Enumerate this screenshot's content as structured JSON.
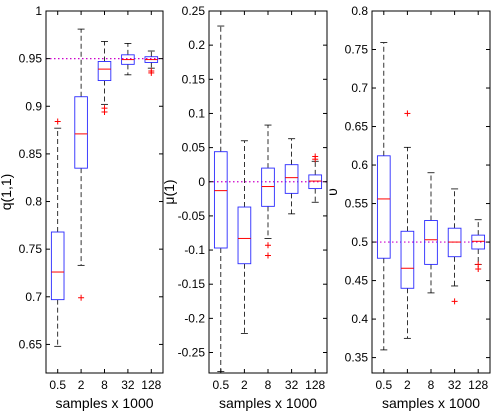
{
  "chart_data": [
    {
      "type": "box",
      "ylabel": "q(1,1)",
      "xlabel": "samples x 1000",
      "categories": [
        "0.5",
        "2",
        "8",
        "32",
        "128"
      ],
      "ylim": [
        0.62,
        1.0
      ],
      "yticks": [
        "0.65",
        "0.7",
        "0.75",
        "0.8",
        "0.85",
        "0.9",
        "0.95",
        "1"
      ],
      "reference_line": 0.95,
      "boxes": [
        {
          "category": "0.5",
          "whisker_low": 0.648,
          "q1": 0.697,
          "median": 0.726,
          "q3": 0.768,
          "whisker_high": 0.877,
          "outliers": [
            0.884
          ]
        },
        {
          "category": "2",
          "whisker_low": 0.733,
          "q1": 0.835,
          "median": 0.871,
          "q3": 0.91,
          "whisker_high": 0.981,
          "outliers": [
            0.699
          ]
        },
        {
          "category": "8",
          "whisker_low": 0.902,
          "q1": 0.927,
          "median": 0.939,
          "q3": 0.947,
          "whisker_high": 0.968,
          "outliers": [
            0.898,
            0.894
          ]
        },
        {
          "category": "32",
          "whisker_low": 0.933,
          "q1": 0.944,
          "median": 0.949,
          "q3": 0.954,
          "whisker_high": 0.966,
          "outliers": []
        },
        {
          "category": "128",
          "whisker_low": 0.94,
          "q1": 0.946,
          "median": 0.949,
          "q3": 0.952,
          "whisker_high": 0.958,
          "outliers": [
            0.937,
            0.935
          ]
        }
      ]
    },
    {
      "type": "box",
      "ylabel": "μ(1)",
      "xlabel": "samples x 1000",
      "categories": [
        "0.5",
        "2",
        "8",
        "32",
        "128"
      ],
      "ylim": [
        -0.28,
        0.25
      ],
      "yticks": [
        "-0.25",
        "-0.2",
        "-0.15",
        "-0.1",
        "-0.05",
        "0",
        "0.05",
        "0.1",
        "0.15",
        "0.2",
        "0.25"
      ],
      "reference_line": 0,
      "boxes": [
        {
          "category": "0.5",
          "whisker_low": -0.278,
          "q1": -0.097,
          "median": -0.013,
          "q3": 0.044,
          "whisker_high": 0.228,
          "outliers": []
        },
        {
          "category": "2",
          "whisker_low": -0.222,
          "q1": -0.12,
          "median": -0.083,
          "q3": -0.037,
          "whisker_high": 0.06,
          "outliers": []
        },
        {
          "category": "8",
          "whisker_low": -0.083,
          "q1": -0.036,
          "median": -0.007,
          "q3": 0.02,
          "whisker_high": 0.083,
          "outliers": [
            -0.093,
            -0.108
          ]
        },
        {
          "category": "32",
          "whisker_low": -0.047,
          "q1": -0.017,
          "median": 0.006,
          "q3": 0.025,
          "whisker_high": 0.063,
          "outliers": []
        },
        {
          "category": "128",
          "whisker_low": -0.03,
          "q1": -0.01,
          "median": 0.001,
          "q3": 0.01,
          "whisker_high": 0.03,
          "outliers": [
            0.033,
            0.037
          ]
        }
      ]
    },
    {
      "type": "box",
      "ylabel": "υ",
      "xlabel": "samples x 1000",
      "categories": [
        "0.5",
        "2",
        "8",
        "32",
        "128"
      ],
      "ylim": [
        0.33,
        0.8
      ],
      "yticks": [
        "0.35",
        "0.4",
        "0.45",
        "0.5",
        "0.55",
        "0.6",
        "0.65",
        "0.7",
        "0.75",
        "0.8"
      ],
      "reference_line": 0.5,
      "boxes": [
        {
          "category": "0.5",
          "whisker_low": 0.36,
          "q1": 0.479,
          "median": 0.556,
          "q3": 0.612,
          "whisker_high": 0.759,
          "outliers": []
        },
        {
          "category": "2",
          "whisker_low": 0.375,
          "q1": 0.44,
          "median": 0.466,
          "q3": 0.514,
          "whisker_high": 0.623,
          "outliers": [
            0.667
          ]
        },
        {
          "category": "8",
          "whisker_low": 0.434,
          "q1": 0.471,
          "median": 0.503,
          "q3": 0.528,
          "whisker_high": 0.59,
          "outliers": []
        },
        {
          "category": "32",
          "whisker_low": 0.443,
          "q1": 0.481,
          "median": 0.5,
          "q3": 0.518,
          "whisker_high": 0.569,
          "outliers": [
            0.423
          ]
        },
        {
          "category": "128",
          "whisker_low": 0.471,
          "q1": 0.491,
          "median": 0.501,
          "q3": 0.509,
          "whisker_high": 0.529,
          "outliers": [
            0.465,
            0.471
          ]
        }
      ]
    }
  ],
  "colors": {
    "box": "#2a2aff",
    "median": "#ff0000",
    "outlier": "#ff0000",
    "whisker": "#000000",
    "reference_line": "#cc00cc",
    "axis": "#000000"
  }
}
